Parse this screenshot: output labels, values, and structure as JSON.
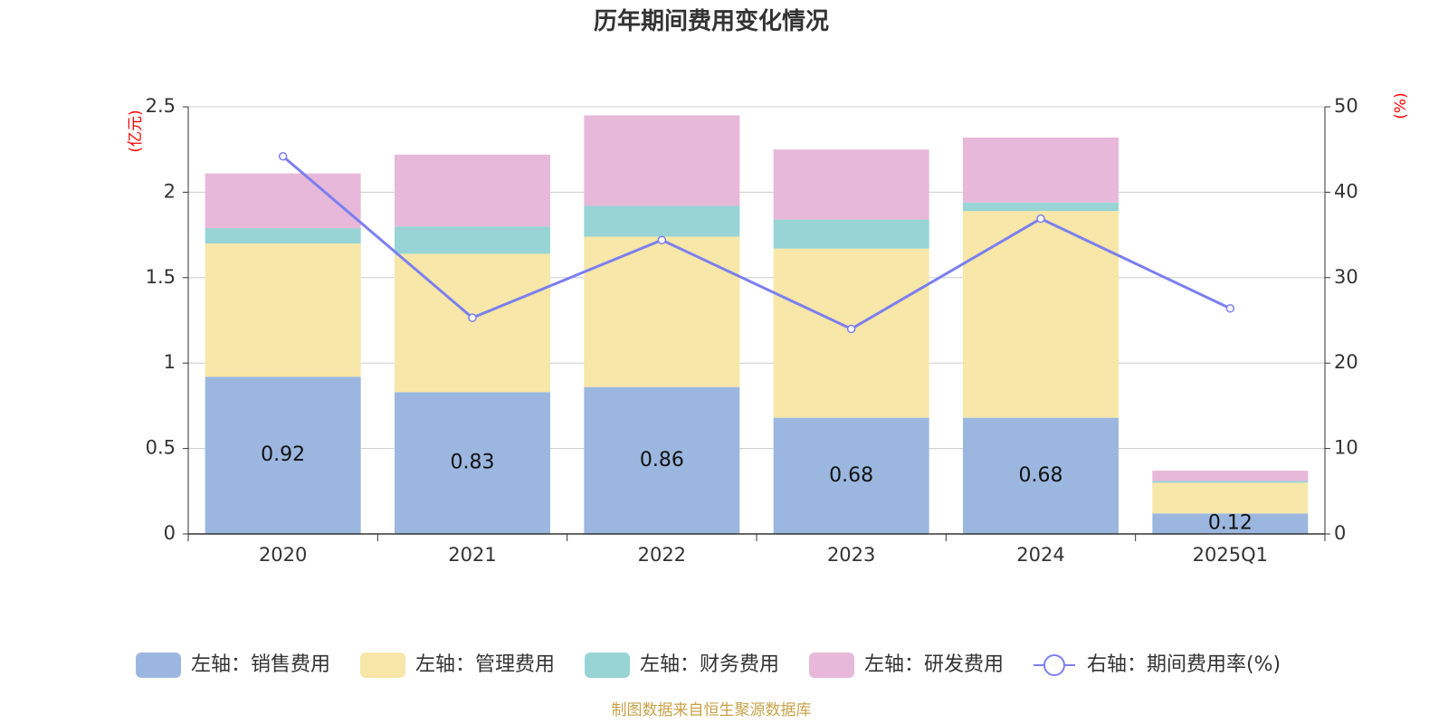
{
  "chart_data": {
    "type": "bar",
    "stacked": true,
    "title": "历年期间费用变化情况",
    "categories": [
      "2020",
      "2021",
      "2022",
      "2023",
      "2024",
      "2025Q1"
    ],
    "left_axis": {
      "unit_label": "(亿元)",
      "ylim": [
        0,
        2.5
      ],
      "ticks": [
        "0",
        "0.5",
        "1",
        "1.5",
        "2",
        "2.5"
      ]
    },
    "right_axis": {
      "unit_label": "(%)",
      "ylim": [
        0,
        50
      ],
      "ticks": [
        "0",
        "10",
        "20",
        "30",
        "40",
        "50"
      ]
    },
    "series": [
      {
        "name": "销售费用",
        "legend": "左轴：销售费用",
        "axis": "left",
        "kind": "bar",
        "color": "#9bb7e0",
        "values": [
          0.92,
          0.83,
          0.86,
          0.68,
          0.68,
          0.12
        ],
        "labels": [
          "0.92",
          "0.83",
          "0.86",
          "0.68",
          "0.68",
          "0.12"
        ]
      },
      {
        "name": "管理费用",
        "legend": "左轴：管理费用",
        "axis": "left",
        "kind": "bar",
        "color": "#f7e7a8",
        "values": [
          0.78,
          0.81,
          0.88,
          0.99,
          1.21,
          0.18
        ]
      },
      {
        "name": "财务费用",
        "legend": "左轴：财务费用",
        "axis": "left",
        "kind": "bar",
        "color": "#98d4d5",
        "values": [
          0.09,
          0.16,
          0.18,
          0.17,
          0.05,
          0.01
        ]
      },
      {
        "name": "研发费用",
        "legend": "左轴：研发费用",
        "axis": "left",
        "kind": "bar",
        "color": "#e7b8d9",
        "values": [
          0.32,
          0.42,
          0.53,
          0.41,
          0.38,
          0.06
        ]
      },
      {
        "name": "期间费用率",
        "legend": "右轴：期间费用率(%)",
        "axis": "right",
        "kind": "line",
        "color": "#7b7ff0",
        "values": [
          44.2,
          25.3,
          34.4,
          24.0,
          36.9,
          26.4
        ]
      }
    ],
    "grid": true,
    "legend_position": "bottom"
  },
  "source": "制图数据来自恒生聚源数据库"
}
